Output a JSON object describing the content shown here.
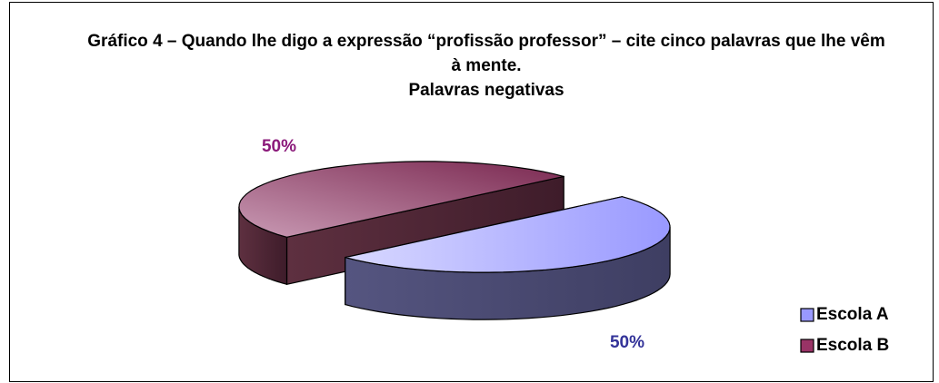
{
  "chart_data": {
    "type": "pie",
    "title": "Gráfico 4 – Quando lhe digo a expressão “profissão professor” – cite cinco palavras que lhe vêm à mente.",
    "subtitle": "Palavras negativas",
    "categories": [
      "Escola A",
      "Escola B"
    ],
    "values": [
      50,
      50
    ],
    "value_labels": [
      "50%",
      "50%"
    ],
    "colors": [
      "#9999ff",
      "#993366"
    ],
    "legend": "right"
  }
}
